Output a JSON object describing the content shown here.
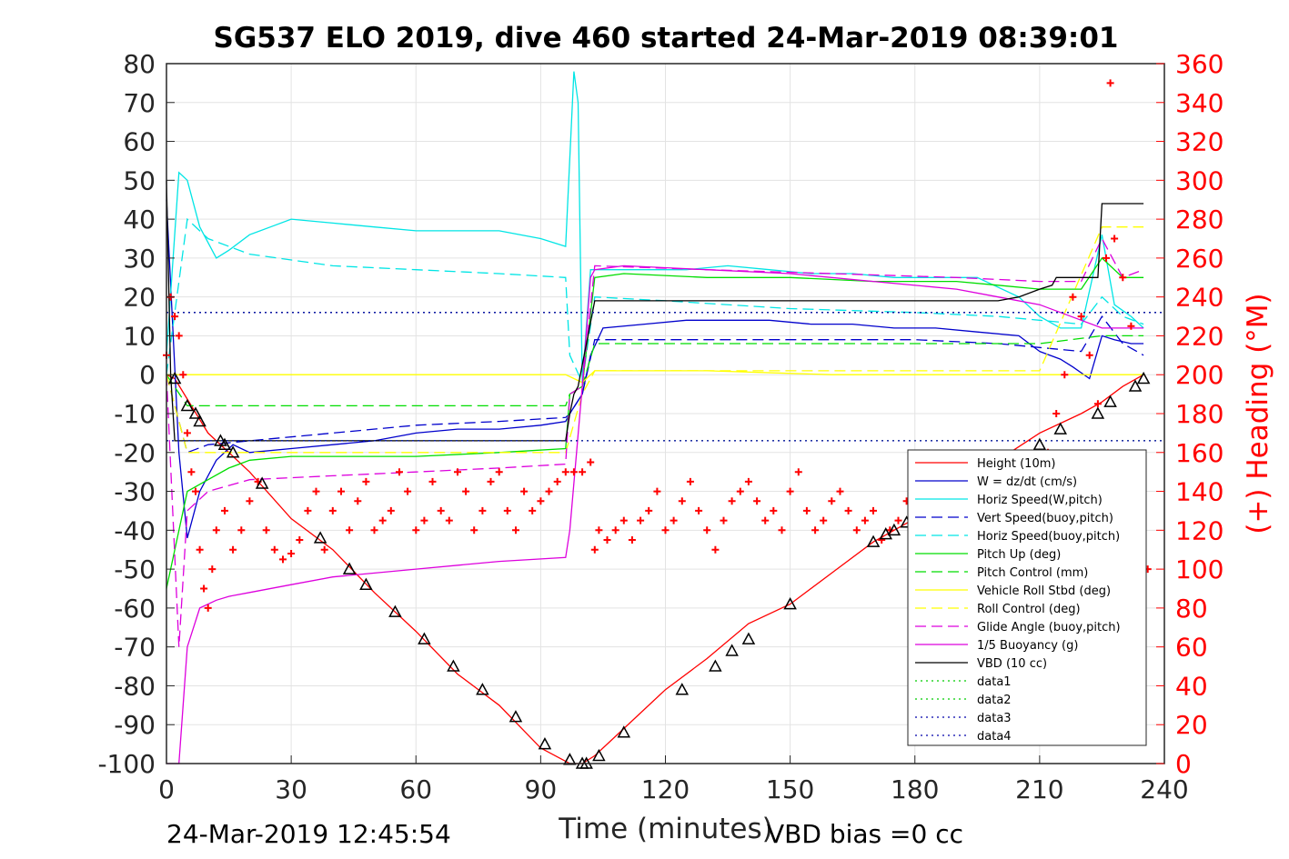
{
  "chart_data": {
    "type": "line",
    "title": "SG537 ELO 2019, dive 460 started 24-Mar-2019 08:39:01",
    "xlabel": "Time (minutes)",
    "ylabel": "",
    "y2label": "(+) Heading (°M)",
    "xlim": [
      0,
      240
    ],
    "ylim": [
      -100,
      80
    ],
    "y2lim": [
      0,
      360
    ],
    "xticks": [
      "0",
      "30",
      "60",
      "90",
      "120",
      "150",
      "180",
      "210",
      "240"
    ],
    "yticks": [
      "80",
      "70",
      "60",
      "50",
      "40",
      "30",
      "20",
      "10",
      "0",
      "-10",
      "-20",
      "-30",
      "-40",
      "-50",
      "-60",
      "-70",
      "-80",
      "-90",
      "-100"
    ],
    "y2ticks": [
      "360",
      "340",
      "320",
      "300",
      "280",
      "260",
      "240",
      "220",
      "200",
      "180",
      "160",
      "140",
      "120",
      "100",
      "80",
      "60",
      "40",
      "20",
      "0"
    ],
    "grid": true,
    "legend_position": "lower-right",
    "footer_left": "24-Mar-2019 12:45:54",
    "footer_right": "VBD bias =0 cc",
    "series": [
      {
        "name": "Height (10m)",
        "color": "#ff0000",
        "style": "solid",
        "x": [
          0,
          2,
          10,
          20,
          30,
          40,
          50,
          60,
          70,
          80,
          90,
          97,
          100,
          103,
          110,
          120,
          130,
          140,
          150,
          160,
          170,
          180,
          190,
          200,
          210,
          220,
          225,
          230,
          235
        ],
        "y": [
          0,
          -1,
          -15,
          -25,
          -37,
          -45,
          -56,
          -66,
          -77,
          -85,
          -96,
          -100,
          -100,
          -98,
          -91,
          -81,
          -73,
          -64,
          -59,
          -51,
          -43,
          -37,
          -30,
          -22,
          -15,
          -10,
          -7,
          -3,
          0
        ]
      },
      {
        "name": "W = dz/dt (cm/s)",
        "color": "#0000cc",
        "style": "solid",
        "x": [
          0,
          3,
          5,
          8,
          12,
          16,
          20,
          30,
          40,
          50,
          60,
          70,
          80,
          90,
          96,
          97,
          100,
          102,
          105,
          115,
          125,
          135,
          145,
          155,
          165,
          175,
          185,
          195,
          205,
          210,
          215,
          218,
          222,
          225,
          228,
          232,
          235
        ],
        "y": [
          45,
          -20,
          -42,
          -30,
          -22,
          -18,
          -20,
          -19,
          -18,
          -17,
          -15,
          -14,
          -14,
          -13,
          -12,
          -10,
          -5,
          5,
          12,
          13,
          14,
          14,
          14,
          13,
          13,
          12,
          12,
          11,
          10,
          6,
          4,
          2,
          -1,
          10,
          9,
          8,
          8
        ]
      },
      {
        "name": "Horiz Speed(W,pitch)",
        "color": "#00e5e5",
        "style": "solid",
        "x": [
          0,
          3,
          5,
          8,
          12,
          15,
          20,
          25,
          30,
          40,
          50,
          60,
          70,
          80,
          90,
          96,
          98,
          99,
          100,
          102,
          105,
          115,
          125,
          135,
          145,
          155,
          165,
          175,
          185,
          195,
          205,
          210,
          215,
          220,
          225,
          228,
          232,
          235
        ],
        "y": [
          5,
          52,
          50,
          38,
          30,
          32,
          36,
          38,
          40,
          39,
          38,
          37,
          37,
          37,
          35,
          33,
          78,
          70,
          -2,
          27,
          27,
          27,
          27,
          28,
          27,
          26,
          26,
          25,
          25,
          25,
          20,
          15,
          12,
          12,
          36,
          18,
          15,
          12
        ]
      },
      {
        "name": "Vert Speed(buoy,pitch)",
        "color": "#0000cc",
        "style": "dashed",
        "x": [
          0,
          5,
          10,
          20,
          40,
          60,
          80,
          96,
          97,
          100,
          103,
          120,
          150,
          180,
          200,
          210,
          220,
          225,
          230,
          235
        ],
        "y": [
          0,
          -20,
          -18,
          -17,
          -15,
          -13,
          -12,
          -11,
          -10,
          -5,
          9,
          9,
          9,
          9,
          8,
          7,
          6,
          15,
          8,
          5
        ]
      },
      {
        "name": "Horiz Speed(buoy,pitch)",
        "color": "#00e5e5",
        "style": "dashed",
        "x": [
          0,
          5,
          10,
          20,
          40,
          60,
          80,
          96,
          97,
          100,
          103,
          120,
          150,
          180,
          200,
          210,
          220,
          225,
          230,
          235
        ],
        "y": [
          0,
          40,
          35,
          31,
          28,
          27,
          26,
          25,
          5,
          -2,
          20,
          19,
          17,
          16,
          15,
          14,
          13,
          20,
          15,
          13
        ]
      },
      {
        "name": "Pitch Up (deg)",
        "color": "#00dd00",
        "style": "solid",
        "x": [
          0,
          5,
          10,
          15,
          20,
          30,
          40,
          60,
          80,
          96,
          97,
          100,
          103,
          110,
          130,
          150,
          170,
          190,
          200,
          210,
          220,
          225,
          230,
          235
        ],
        "y": [
          -55,
          -30,
          -27,
          -24,
          -22,
          -21,
          -21,
          -21,
          -20,
          -19,
          -5,
          -3,
          25,
          26,
          25,
          25,
          24,
          24,
          23,
          22,
          22,
          30,
          25,
          25
        ]
      },
      {
        "name": "Pitch Control (mm)",
        "color": "#00dd00",
        "style": "dashed",
        "x": [
          0,
          5,
          10,
          40,
          96,
          97,
          100,
          103,
          140,
          200,
          210,
          225,
          235
        ],
        "y": [
          0,
          -8,
          -8,
          -8,
          -8,
          -5,
          -3,
          8,
          8,
          8,
          8,
          10,
          10
        ]
      },
      {
        "name": "Vehicle Roll Stbd (deg)",
        "color": "#ffff00",
        "style": "solid",
        "x": [
          0,
          5,
          10,
          30,
          60,
          96,
          100,
          103,
          130,
          160,
          190,
          210,
          220,
          225,
          235
        ],
        "y": [
          0,
          0,
          0,
          0,
          0,
          0,
          -2,
          1,
          1,
          0,
          0,
          0,
          0,
          0,
          0
        ]
      },
      {
        "name": "Roll Control (deg)",
        "color": "#ffff00",
        "style": "dashed",
        "x": [
          0,
          5,
          10,
          60,
          96,
          100,
          103,
          150,
          210,
          225,
          235
        ],
        "y": [
          0,
          -20,
          -20,
          -20,
          -20,
          -5,
          1,
          1,
          1,
          38,
          38
        ]
      },
      {
        "name": "Glide Angle (buoy,pitch)",
        "color": "#dd00dd",
        "style": "dashed",
        "x": [
          0,
          3,
          5,
          10,
          20,
          40,
          60,
          80,
          96,
          97,
          100,
          103,
          130,
          160,
          190,
          210,
          220,
          225,
          230,
          235
        ],
        "y": [
          0,
          -70,
          -35,
          -30,
          -27,
          -26,
          -25,
          -24,
          -23,
          -5,
          -3,
          28,
          27,
          26,
          25,
          24,
          24,
          35,
          25,
          27
        ]
      },
      {
        "name": "1/5 Buoyancy (g)",
        "color": "#dd00dd",
        "style": "solid",
        "x": [
          0,
          3,
          4,
          5,
          8,
          12,
          15,
          20,
          30,
          40,
          60,
          80,
          96,
          97,
          100,
          102,
          103,
          110,
          130,
          150,
          170,
          190,
          200,
          210,
          220,
          225,
          230,
          235
        ],
        "y": [
          -100,
          -100,
          -85,
          -70,
          -60,
          -58,
          -57,
          -56,
          -54,
          -52,
          -50,
          -48,
          -47,
          -40,
          -3,
          25,
          27,
          28,
          27,
          26,
          24,
          22,
          20,
          18,
          14,
          12,
          12,
          12
        ]
      },
      {
        "name": "VBD (10 cc)",
        "color": "#000000",
        "style": "solid",
        "x": [
          0,
          1,
          2,
          3,
          96,
          97,
          98,
          99,
          103,
          104,
          200,
          205,
          210,
          213,
          214,
          224,
          225,
          226,
          230,
          235
        ],
        "y": [
          50,
          0,
          -17,
          -17,
          -17,
          -10,
          -5,
          -3,
          19,
          19,
          19,
          20,
          22,
          23,
          25,
          25,
          44,
          44,
          44,
          44
        ]
      },
      {
        "name": "data1",
        "color": "#00cc00",
        "style": "dotted",
        "x": [
          0,
          240
        ],
        "y": [
          16,
          16
        ]
      },
      {
        "name": "data2",
        "color": "#00cc00",
        "style": "dotted",
        "x": [
          0,
          240
        ],
        "y": [
          -17,
          -17
        ]
      },
      {
        "name": "data3",
        "color": "#0000aa",
        "style": "dotted",
        "x": [
          0,
          240
        ],
        "y": [
          16,
          16
        ]
      },
      {
        "name": "data4",
        "color": "#0000aa",
        "style": "dotted",
        "x": [
          0,
          240
        ],
        "y": [
          -17,
          -17
        ]
      }
    ],
    "heading": {
      "name": "(+) Heading (°M)",
      "color": "#ff0000",
      "marker": "+",
      "x": [
        0,
        1,
        2,
        3,
        4,
        5,
        6,
        7,
        8,
        9,
        10,
        11,
        12,
        14,
        16,
        18,
        20,
        22,
        24,
        26,
        28,
        30,
        32,
        34,
        36,
        38,
        40,
        42,
        44,
        46,
        48,
        50,
        52,
        54,
        56,
        58,
        60,
        62,
        64,
        66,
        68,
        70,
        72,
        74,
        76,
        78,
        80,
        82,
        84,
        86,
        88,
        90,
        92,
        94,
        96,
        98,
        100,
        102,
        103,
        104,
        106,
        108,
        110,
        112,
        114,
        116,
        118,
        120,
        122,
        124,
        126,
        128,
        130,
        132,
        134,
        136,
        138,
        140,
        142,
        144,
        146,
        148,
        150,
        152,
        154,
        156,
        158,
        160,
        162,
        164,
        166,
        168,
        170,
        172,
        174,
        176,
        178,
        180,
        182,
        184,
        186,
        188,
        190,
        192,
        194,
        196,
        198,
        200,
        202,
        204,
        206,
        208,
        210,
        212,
        214,
        216,
        218,
        220,
        222,
        224,
        226,
        227,
        228,
        230,
        232,
        234,
        236
      ],
      "y": [
        210,
        240,
        230,
        220,
        200,
        170,
        150,
        140,
        110,
        90,
        80,
        100,
        120,
        130,
        110,
        120,
        135,
        145,
        120,
        110,
        105,
        108,
        115,
        130,
        140,
        110,
        130,
        140,
        120,
        135,
        145,
        120,
        125,
        130,
        150,
        140,
        120,
        125,
        145,
        130,
        125,
        150,
        140,
        120,
        130,
        145,
        150,
        130,
        120,
        140,
        130,
        135,
        140,
        145,
        150,
        150,
        150,
        155,
        110,
        120,
        115,
        120,
        125,
        115,
        125,
        130,
        140,
        120,
        125,
        135,
        145,
        130,
        120,
        110,
        125,
        135,
        140,
        145,
        135,
        125,
        130,
        120,
        140,
        150,
        130,
        120,
        125,
        135,
        140,
        130,
        120,
        125,
        130,
        115,
        120,
        125,
        135,
        130,
        120,
        115,
        130,
        135,
        140,
        130,
        120,
        130,
        140,
        150,
        125,
        130,
        135,
        140,
        145,
        160,
        180,
        200,
        240,
        230,
        210,
        185,
        260,
        350,
        270,
        250,
        225,
        110,
        100
      ]
    },
    "markers": {
      "shape": "triangle",
      "x": [
        2,
        5,
        7,
        8,
        13,
        14,
        16,
        23,
        37,
        44,
        48,
        55,
        62,
        69,
        76,
        84,
        91,
        97,
        100,
        101,
        104,
        110,
        124,
        132,
        136,
        140,
        150,
        170,
        173,
        175,
        178,
        197,
        201,
        205,
        210,
        215,
        224,
        227,
        233,
        235
      ],
      "y": [
        -1,
        -8,
        -10,
        -12,
        -17,
        -18,
        -20,
        -28,
        -42,
        -50,
        -54,
        -61,
        -68,
        -75,
        -81,
        -88,
        -95,
        -99,
        -100,
        -100,
        -98,
        -92,
        -81,
        -75,
        -71,
        -68,
        -59,
        -43,
        -41,
        -40,
        -38,
        -25,
        -23,
        -21,
        -18,
        -14,
        -10,
        -7,
        -3,
        -1
      ]
    }
  }
}
